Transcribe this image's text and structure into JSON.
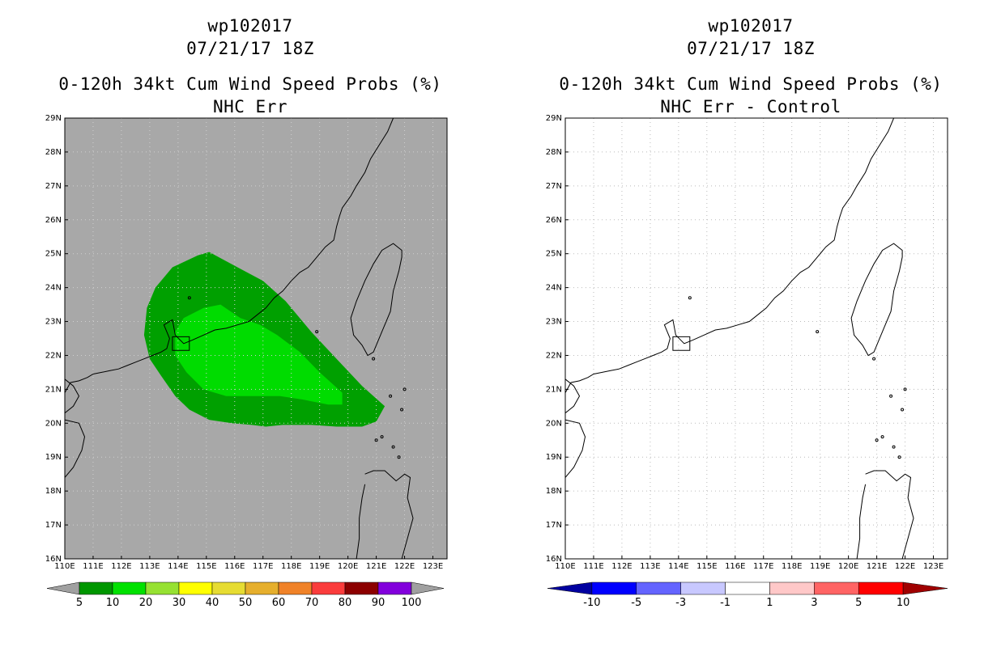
{
  "colors": {
    "land_fill": "#a8a8a8",
    "coast": "#000000",
    "grid": "#bbbbbb",
    "prob_5_10": "#00a000",
    "prob_10_20": "#00dc00"
  },
  "panels": [
    {
      "storm": "wp102017",
      "datetime": "07/21/17 18Z",
      "product": "0-120h 34kt Cum Wind Speed Probs (%)",
      "subtitle": "NHC Err",
      "colorbar": {
        "labels": [
          "5",
          "10",
          "20",
          "30",
          "40",
          "50",
          "60",
          "70",
          "80",
          "90",
          "100"
        ],
        "colors": [
          "#009600",
          "#00e100",
          "#96e132",
          "#ffff00",
          "#e6dc32",
          "#e6af2d",
          "#f08228",
          "#fa3c3c",
          "#8c0000",
          "#8200dc"
        ]
      }
    },
    {
      "storm": "wp102017",
      "datetime": "07/21/17 18Z",
      "product": "0-120h 34kt Cum Wind Speed Probs (%)",
      "subtitle": "NHC Err - Control",
      "colorbar": {
        "labels": [
          "-10",
          "-5",
          "-3",
          "-1",
          "1",
          "3",
          "5",
          "10"
        ],
        "colors": [
          "#0000a0",
          "#0000ff",
          "#6464ff",
          "#c8c8ff",
          "#ffffff",
          "#ffc8c8",
          "#ff6464",
          "#ff0000",
          "#a00000"
        ]
      }
    }
  ],
  "map": {
    "lon_labels": [
      "110E",
      "111E",
      "112E",
      "113E",
      "114E",
      "115E",
      "116E",
      "117E",
      "118E",
      "119E",
      "120E",
      "121E",
      "122E",
      "123E"
    ],
    "lat_labels": [
      "16N",
      "17N",
      "18N",
      "19N",
      "20N",
      "21N",
      "22N",
      "23N",
      "24N",
      "25N",
      "26N",
      "27N",
      "28N",
      "29N"
    ]
  },
  "chart_data": {
    "type": "map",
    "lon_range": [
      110,
      123.5
    ],
    "lat_range": [
      16,
      29
    ],
    "grid_spacing_deg": 1,
    "wind_prob_contours": [
      {
        "level": "5-10%",
        "lonlat": [
          [
            112.8,
            22.6
          ],
          [
            112.9,
            23.4
          ],
          [
            113.2,
            24.0
          ],
          [
            113.8,
            24.6
          ],
          [
            114.7,
            24.95
          ],
          [
            115.1,
            25.05
          ],
          [
            116.1,
            24.6
          ],
          [
            117.0,
            24.2
          ],
          [
            117.8,
            23.6
          ],
          [
            118.7,
            22.7
          ],
          [
            119.6,
            21.9
          ],
          [
            120.5,
            21.1
          ],
          [
            121.3,
            20.5
          ],
          [
            121.0,
            20.05
          ],
          [
            120.5,
            19.9
          ],
          [
            119.6,
            19.9
          ],
          [
            118.7,
            19.95
          ],
          [
            117.7,
            19.95
          ],
          [
            117.1,
            19.9
          ],
          [
            116.6,
            19.95
          ],
          [
            115.9,
            20.0
          ],
          [
            115.1,
            20.1
          ],
          [
            114.4,
            20.4
          ],
          [
            113.9,
            20.8
          ],
          [
            113.4,
            21.4
          ],
          [
            113.0,
            21.9
          ]
        ]
      },
      {
        "level": "10-20%",
        "lonlat": [
          [
            113.9,
            22.0
          ],
          [
            113.9,
            22.7
          ],
          [
            114.2,
            23.1
          ],
          [
            114.9,
            23.4
          ],
          [
            115.5,
            23.5
          ],
          [
            116.2,
            23.1
          ],
          [
            116.9,
            22.9
          ],
          [
            117.5,
            22.6
          ],
          [
            118.3,
            22.1
          ],
          [
            119.0,
            21.5
          ],
          [
            119.8,
            20.9
          ],
          [
            119.8,
            20.55
          ],
          [
            119.3,
            20.55
          ],
          [
            118.4,
            20.7
          ],
          [
            117.6,
            20.8
          ],
          [
            116.7,
            20.8
          ],
          [
            115.7,
            20.8
          ],
          [
            114.9,
            21.0
          ],
          [
            114.3,
            21.5
          ]
        ]
      }
    ]
  }
}
